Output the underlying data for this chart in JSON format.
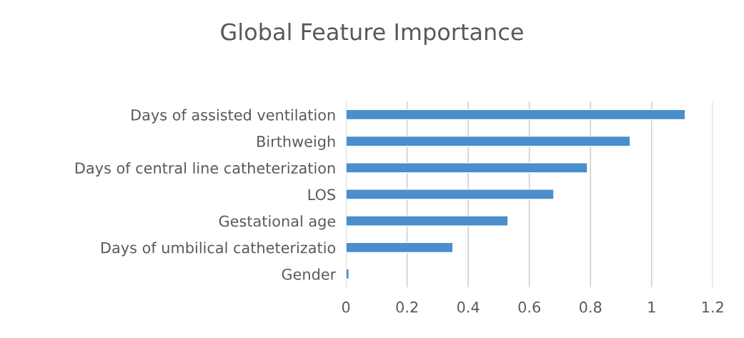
{
  "chart_data": {
    "type": "bar",
    "orientation": "horizontal",
    "title": "Global Feature Importance",
    "categories": [
      "Days of assisted ventilation",
      "Birthweigh",
      "Days of central line catheterization",
      "LOS",
      "Gestational age",
      "Days of umbilical catheterizatio",
      "Gender"
    ],
    "values": [
      1.11,
      0.93,
      0.79,
      0.68,
      0.53,
      0.35,
      0.01
    ],
    "color": "#4a8ecb",
    "xlim": [
      0,
      1.2
    ],
    "xticks": [
      0,
      0.2,
      0.4,
      0.6,
      0.8,
      1,
      1.2
    ],
    "grid": "x"
  }
}
